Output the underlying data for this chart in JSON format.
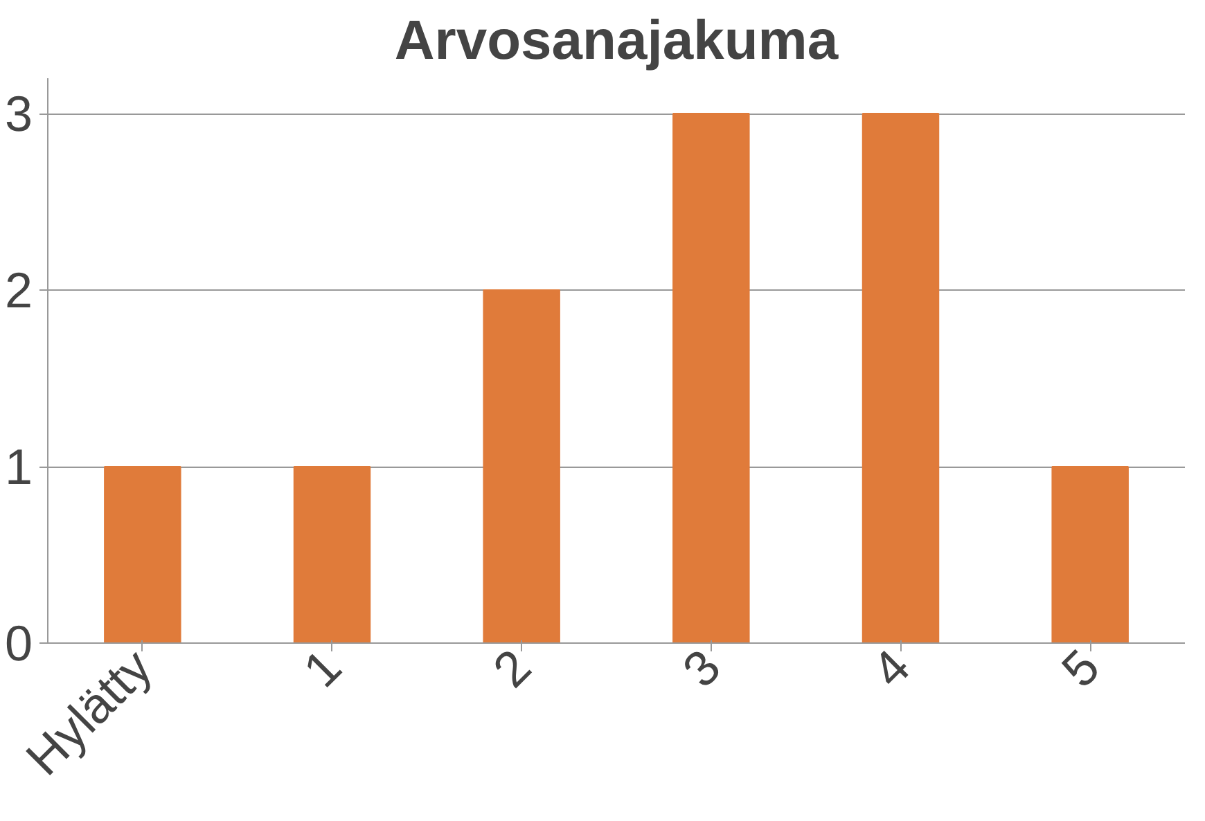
{
  "chart_data": {
    "type": "bar",
    "title": "Arvosanajakuma",
    "categories": [
      "Hylätty",
      "1",
      "2",
      "3",
      "4",
      "5"
    ],
    "values": [
      1,
      1,
      2,
      3,
      3,
      1
    ],
    "color": "#e07b3a",
    "ylim": [
      0,
      3.2
    ],
    "yticks": [
      0,
      1,
      2,
      3
    ],
    "grid": "y"
  }
}
